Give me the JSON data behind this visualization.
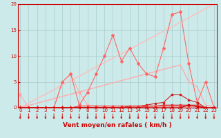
{
  "title": "",
  "xlabel": "Vent moyen/en rafales ( km/h )",
  "ylabel": "",
  "background_color": "#cceaea",
  "grid_color": "#aacccc",
  "x_values": [
    0,
    1,
    2,
    3,
    4,
    5,
    6,
    7,
    8,
    9,
    10,
    11,
    12,
    13,
    14,
    15,
    16,
    17,
    18,
    19,
    20,
    21,
    22,
    23
  ],
  "series": [
    {
      "name": "diagonal_pale",
      "y": [
        0,
        0.87,
        1.74,
        2.6,
        3.47,
        4.35,
        5.22,
        6.09,
        6.96,
        7.83,
        8.7,
        9.57,
        10.43,
        11.3,
        12.17,
        13.04,
        13.91,
        14.78,
        15.65,
        16.52,
        17.39,
        18.26,
        19.13,
        20.0
      ],
      "color": "#ffbbbb",
      "linewidth": 1.0,
      "marker": null,
      "markersize": 0
    },
    {
      "name": "diagonal_medium",
      "y": [
        0,
        0.43,
        0.87,
        1.3,
        1.74,
        2.17,
        2.6,
        3.04,
        3.47,
        3.91,
        4.35,
        4.78,
        5.22,
        5.65,
        6.09,
        6.52,
        6.96,
        7.39,
        7.83,
        8.26,
        5.0,
        4.0,
        0.5,
        0.2
      ],
      "color": "#ffaaaa",
      "linewidth": 1.0,
      "marker": null,
      "markersize": 0
    },
    {
      "name": "line_pink_markers",
      "y": [
        2.5,
        0,
        0,
        0,
        0,
        5.0,
        6.5,
        3.0,
        0.5,
        0.3,
        0.3,
        0.3,
        0.3,
        0.3,
        0.3,
        0.3,
        0.3,
        0.3,
        0.3,
        0.3,
        0.3,
        0.3,
        0,
        0
      ],
      "color": "#ffaaaa",
      "linewidth": 0.8,
      "marker": "D",
      "markersize": 2.0
    },
    {
      "name": "line_red_jagged",
      "y": [
        0,
        0,
        0,
        0,
        0,
        5.0,
        6.5,
        0.5,
        3.0,
        6.5,
        10.0,
        14.0,
        9.0,
        11.5,
        8.5,
        6.5,
        6.0,
        11.5,
        18.0,
        18.5,
        8.5,
        1.0,
        5.0,
        0
      ],
      "color": "#ff6666",
      "linewidth": 0.8,
      "marker": "D",
      "markersize": 2.0
    },
    {
      "name": "line_dark_red1",
      "y": [
        0,
        0,
        0,
        0,
        0,
        0,
        0,
        0,
        0,
        0,
        0,
        0,
        0,
        0.3,
        0.3,
        0.5,
        0.8,
        1.0,
        2.5,
        2.5,
        1.5,
        1.0,
        0,
        0
      ],
      "color": "#cc2222",
      "linewidth": 0.8,
      "marker": "s",
      "markersize": 2.0
    },
    {
      "name": "line_dark_red2",
      "y": [
        0,
        0,
        0,
        0,
        0,
        0,
        0,
        0,
        0,
        0,
        0,
        0,
        0,
        0,
        0,
        0.3,
        0.3,
        0.5,
        0.5,
        0.5,
        0.5,
        0.5,
        0,
        0
      ],
      "color": "#dd3333",
      "linewidth": 0.8,
      "marker": "s",
      "markersize": 2.0
    },
    {
      "name": "line_dark_red3",
      "y": [
        0,
        0,
        0,
        0,
        0,
        0,
        0,
        0.3,
        0.3,
        0.3,
        0.3,
        0.3,
        0.3,
        0.3,
        0.3,
        0.3,
        0.3,
        0.3,
        0.3,
        0.3,
        0.3,
        0.3,
        0,
        0
      ],
      "color": "#ee4444",
      "linewidth": 0.8,
      "marker": "s",
      "markersize": 2.0
    },
    {
      "name": "line_dark_red4",
      "y": [
        0,
        0,
        0,
        0,
        0,
        0,
        0,
        0,
        0,
        0,
        0,
        0,
        0,
        0,
        0,
        0,
        0,
        0,
        0,
        0,
        0.5,
        0.2,
        0,
        0
      ],
      "color": "#cc0000",
      "linewidth": 0.8,
      "marker": "s",
      "markersize": 2.0
    }
  ],
  "ylim": [
    0,
    20
  ],
  "xlim": [
    -0.3,
    23.3
  ],
  "yticks": [
    0,
    5,
    10,
    15,
    20
  ],
  "xticks": [
    0,
    1,
    2,
    3,
    4,
    5,
    6,
    7,
    8,
    9,
    10,
    11,
    12,
    13,
    14,
    15,
    16,
    17,
    18,
    19,
    20,
    21,
    22,
    23
  ],
  "tick_color": "#cc0000",
  "axis_color": "#cc0000",
  "label_color": "#cc0000",
  "tick_fontsize": 5.0,
  "xlabel_fontsize": 6.5,
  "arrow_color": "#cc0000"
}
